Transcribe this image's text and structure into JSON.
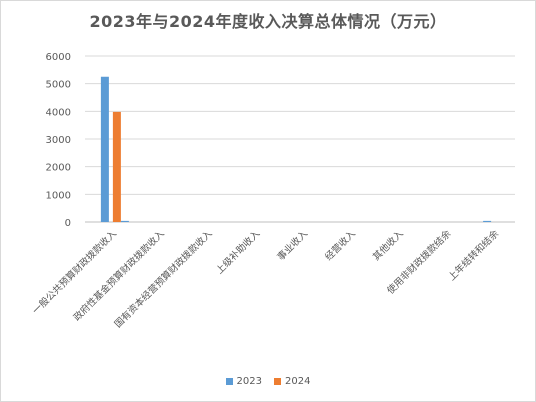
{
  "title": "2023年与2024年度收入决算总体情况（万元）",
  "chart_data": {
    "type": "bar",
    "title": "2023年与2024年度收入决算总体情况（万元）",
    "categories": [
      "一般公共预算财政拨款收入",
      "政府性基金预算财政拨款收入",
      "国有资本经营预算财政拨款收入",
      "上级补助收入",
      "事业收入",
      "经营收入",
      "其他收入",
      "使用非财政拨款结余",
      "上年结转和结余"
    ],
    "series": [
      {
        "name": "2023",
        "color": "#5b9bd5",
        "values": [
          5250,
          0,
          0,
          0,
          0,
          0,
          0,
          0,
          40
        ]
      },
      {
        "name": "2024",
        "color": "#ed7d31",
        "values": [
          3980,
          0,
          0,
          0,
          0,
          0,
          0,
          0,
          0
        ]
      }
    ],
    "extra_bar": {
      "series_index": 0,
      "category_index": 0,
      "offset": 2,
      "value": 40
    },
    "ylim": [
      0,
      6000
    ],
    "yticks": [
      0,
      1000,
      2000,
      3000,
      4000,
      5000,
      6000
    ],
    "grid": true,
    "legend_position": "bottom"
  }
}
